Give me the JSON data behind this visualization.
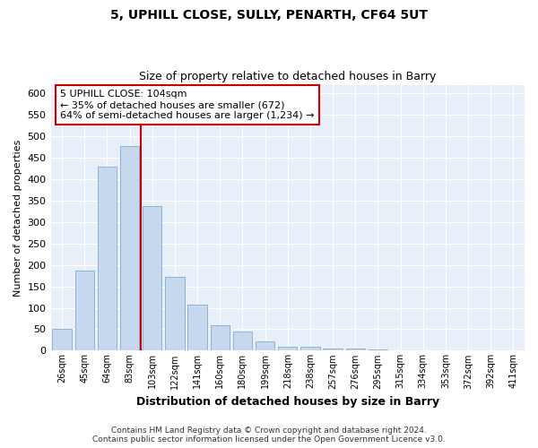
{
  "title1": "5, UPHILL CLOSE, SULLY, PENARTH, CF64 5UT",
  "title2": "Size of property relative to detached houses in Barry",
  "xlabel": "Distribution of detached houses by size in Barry",
  "ylabel": "Number of detached properties",
  "categories": [
    "26sqm",
    "45sqm",
    "64sqm",
    "83sqm",
    "103sqm",
    "122sqm",
    "141sqm",
    "160sqm",
    "180sqm",
    "199sqm",
    "218sqm",
    "238sqm",
    "257sqm",
    "276sqm",
    "295sqm",
    "315sqm",
    "334sqm",
    "353sqm",
    "372sqm",
    "392sqm",
    "411sqm"
  ],
  "values": [
    50,
    187,
    428,
    477,
    337,
    172,
    108,
    59,
    44,
    22,
    9,
    10,
    5,
    5,
    2,
    1,
    1,
    0,
    0,
    0,
    0
  ],
  "bar_color": "#c5d8ee",
  "bar_edge_color": "#8ab4d8",
  "vline_x_index": 3.5,
  "vline_color": "#cc0000",
  "annotation_text": "5 UPHILL CLOSE: 104sqm\n← 35% of detached houses are smaller (672)\n64% of semi-detached houses are larger (1,234) →",
  "annotation_box_color": "#ffffff",
  "annotation_box_edge_color": "#cc0000",
  "footer_text": "Contains HM Land Registry data © Crown copyright and database right 2024.\nContains public sector information licensed under the Open Government Licence v3.0.",
  "ylim": [
    0,
    620
  ],
  "yticks": [
    0,
    50,
    100,
    150,
    200,
    250,
    300,
    350,
    400,
    450,
    500,
    550,
    600
  ],
  "bg_color": "#e8eff8",
  "fig_bg_color": "#ffffff",
  "title1_fontsize": 10,
  "title2_fontsize": 9,
  "ylabel_fontsize": 8,
  "xlabel_fontsize": 9,
  "tick_fontsize": 8,
  "xtick_fontsize": 7,
  "annotation_fontsize": 8,
  "footer_fontsize": 6.5
}
